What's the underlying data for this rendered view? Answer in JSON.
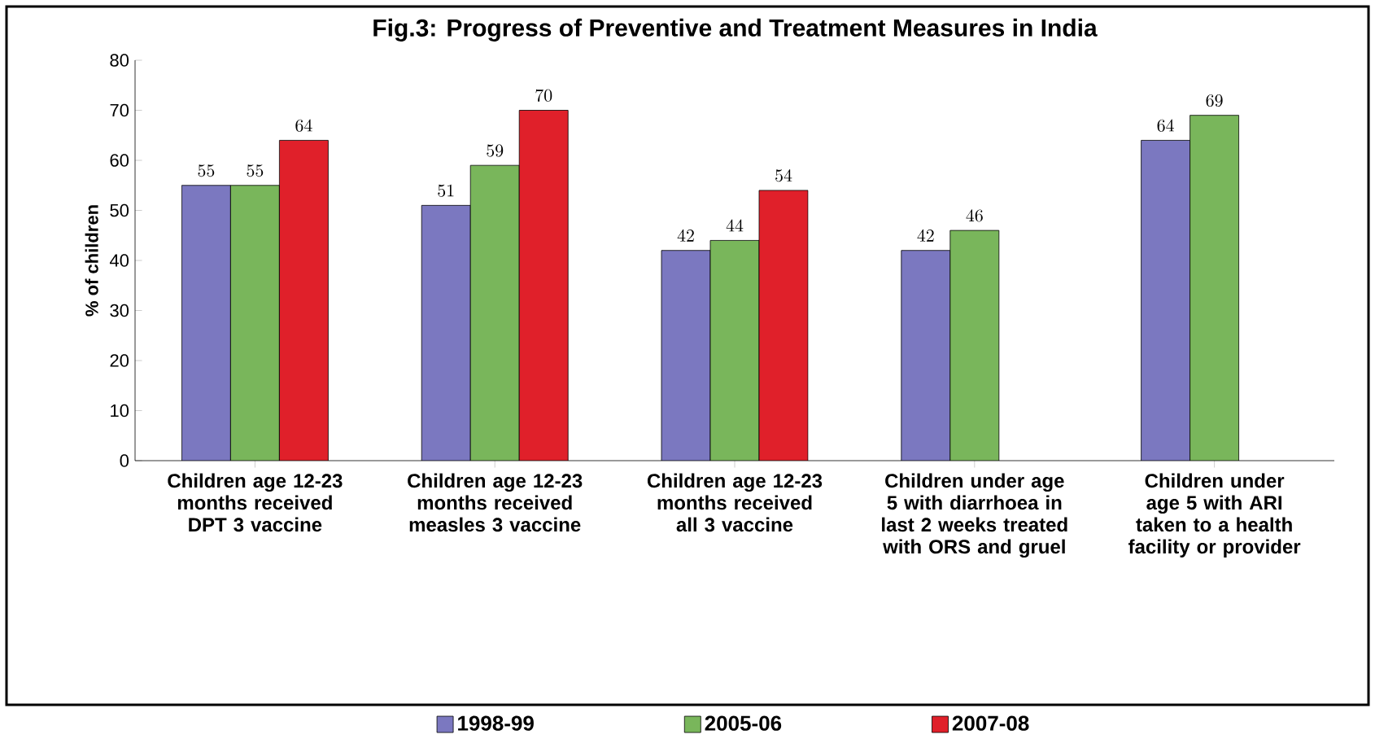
{
  "chart_data": {
    "type": "bar",
    "title": "Fig.3: Progress of Preventive and Treatment Measures in India",
    "ylabel": "% of children",
    "categories": [
      "Children age 12-23 months received DPT 3 vaccine",
      "Children age 12-23 months received measles 3 vaccine",
      "Children age 12-23 months received all 3 vaccine",
      "Children under age 5 with diarrhoea in last 2 weeks treated with ORS and gruel",
      "Children under age 5 with ARI taken to a health facility or provider"
    ],
    "series": [
      {
        "name": "1998-99",
        "color": "#7b78c0",
        "values": [
          55,
          51,
          42,
          42,
          64
        ]
      },
      {
        "name": "2005-06",
        "color": "#79b65b",
        "values": [
          55,
          59,
          44,
          46,
          69
        ]
      },
      {
        "name": "2007-08",
        "color": "#e0202a",
        "values": [
          64,
          70,
          54,
          null,
          null
        ]
      }
    ],
    "ylim": [
      0,
      80
    ],
    "yticks": [
      0,
      10,
      20,
      30,
      40,
      50,
      60,
      70,
      80
    ],
    "grid": false,
    "legend": "bottom",
    "data_labels": true
  }
}
